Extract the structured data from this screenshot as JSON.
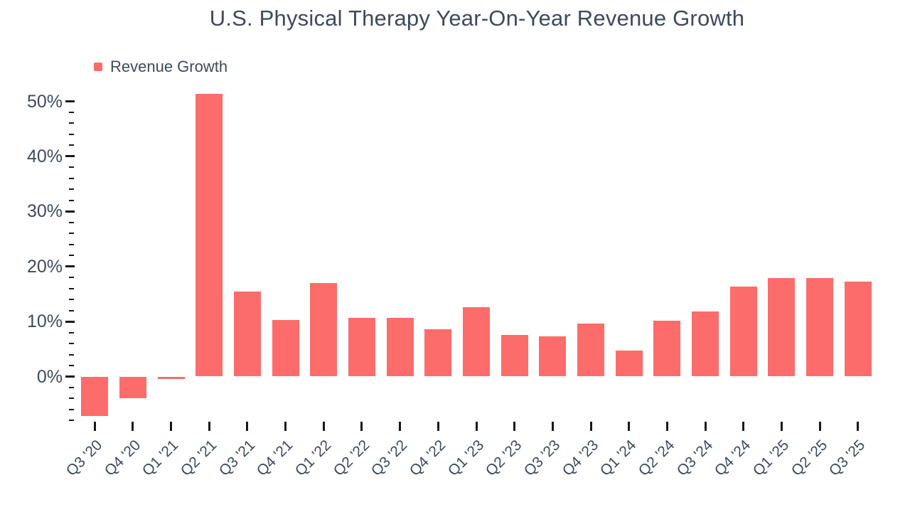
{
  "chart_data": {
    "type": "bar",
    "title": "U.S. Physical Therapy Year-On-Year Revenue Growth",
    "legend": [
      {
        "label": "Revenue Growth",
        "color": "#fc6c6b"
      }
    ],
    "legend_position": "top-left",
    "categories": [
      "Q3 '20",
      "Q4 '20",
      "Q1 '21",
      "Q2 '21",
      "Q3 '21",
      "Q4 '21",
      "Q1 '22",
      "Q2 '22",
      "Q3 '22",
      "Q4 '22",
      "Q1 '23",
      "Q2 '23",
      "Q3 '23",
      "Q4 '23",
      "Q1 '24",
      "Q2 '24",
      "Q3 '24",
      "Q4 '24",
      "Q1 '25",
      "Q2 '25",
      "Q3 '25"
    ],
    "series": [
      {
        "name": "Revenue Growth",
        "values": [
          -7.2,
          -4.0,
          -0.5,
          51.3,
          15.4,
          10.3,
          17.0,
          10.6,
          10.6,
          8.6,
          12.6,
          7.6,
          7.3,
          9.6,
          4.7,
          10.2,
          11.8,
          16.4,
          17.9,
          17.9,
          17.2
        ]
      }
    ],
    "xlabel": "",
    "ylabel": "",
    "y_axis": {
      "unit": "%",
      "major_tick_values": [
        0,
        10,
        20,
        30,
        40,
        50
      ],
      "y_tick_labels": [
        "0%",
        "10%",
        "20%",
        "30%",
        "40%",
        "50%"
      ],
      "major_step": 10,
      "minor_step": 2,
      "minor_min": -8,
      "minor_max": 48
    },
    "ylim": [
      -8.5,
      52
    ],
    "grid": false,
    "colors": {
      "bar": "#fc6c6b",
      "text": "#3d4a5c",
      "tick": "#15191f",
      "background": "#ffffff"
    }
  }
}
